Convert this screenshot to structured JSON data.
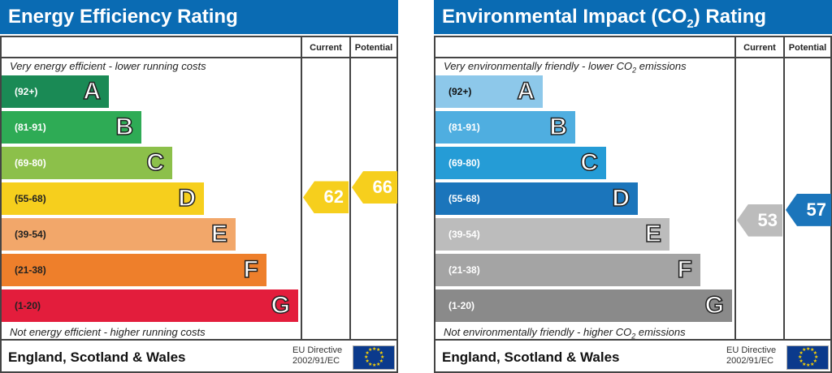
{
  "chart_data": [
    {
      "type": "bar",
      "title": "Energy Efficiency Rating",
      "col_current": "Current",
      "col_potential": "Potential",
      "top_note": "Very energy efficient - lower running costs",
      "bottom_note": "Not energy efficient - higher running costs",
      "bands": [
        {
          "range": "(92+)",
          "letter": "A",
          "color": "#1a8a55"
        },
        {
          "range": "(81-91)",
          "letter": "B",
          "color": "#2eab55"
        },
        {
          "range": "(69-80)",
          "letter": "C",
          "color": "#8cc04a"
        },
        {
          "range": "(55-68)",
          "letter": "D",
          "color": "#f6cf1d"
        },
        {
          "range": "(39-54)",
          "letter": "E",
          "color": "#f2a76a"
        },
        {
          "range": "(21-38)",
          "letter": "F",
          "color": "#ee7f2b"
        },
        {
          "range": "(1-20)",
          "letter": "G",
          "color": "#e31d3c"
        }
      ],
      "current": {
        "value": "62",
        "band": "D",
        "color": "#f6cf1d"
      },
      "potential": {
        "value": "66",
        "band": "D",
        "color": "#f6cf1d"
      },
      "footer": "England, Scotland & Wales",
      "directive_line1": "EU Directive",
      "directive_line2": "2002/91/EC"
    },
    {
      "type": "bar",
      "title_pre": "Environmental Impact (CO",
      "title_sub": "2",
      "title_post": ") Rating",
      "col_current": "Current",
      "col_potential": "Potential",
      "top_note_pre": "Very environmentally friendly - lower CO",
      "top_note_sub": "2",
      "top_note_post": " emissions",
      "bottom_note_pre": "Not environmentally friendly - higher CO",
      "bottom_note_sub": "2",
      "bottom_note_post": " emissions",
      "bands": [
        {
          "range": "(92+)",
          "letter": "A",
          "color": "#8dc8ea"
        },
        {
          "range": "(81-91)",
          "letter": "B",
          "color": "#4faee0"
        },
        {
          "range": "(69-80)",
          "letter": "C",
          "color": "#259cd6"
        },
        {
          "range": "(55-68)",
          "letter": "D",
          "color": "#1b75bb"
        },
        {
          "range": "(39-54)",
          "letter": "E",
          "color": "#bcbcbc"
        },
        {
          "range": "(21-38)",
          "letter": "F",
          "color": "#a4a4a4"
        },
        {
          "range": "(1-20)",
          "letter": "G",
          "color": "#8a8a8a"
        }
      ],
      "current": {
        "value": "53",
        "band": "E",
        "color": "#bcbcbc"
      },
      "potential": {
        "value": "57",
        "band": "D",
        "color": "#1b75bb"
      },
      "footer": "England, Scotland & Wales",
      "directive_line1": "EU Directive",
      "directive_line2": "2002/91/EC"
    }
  ]
}
